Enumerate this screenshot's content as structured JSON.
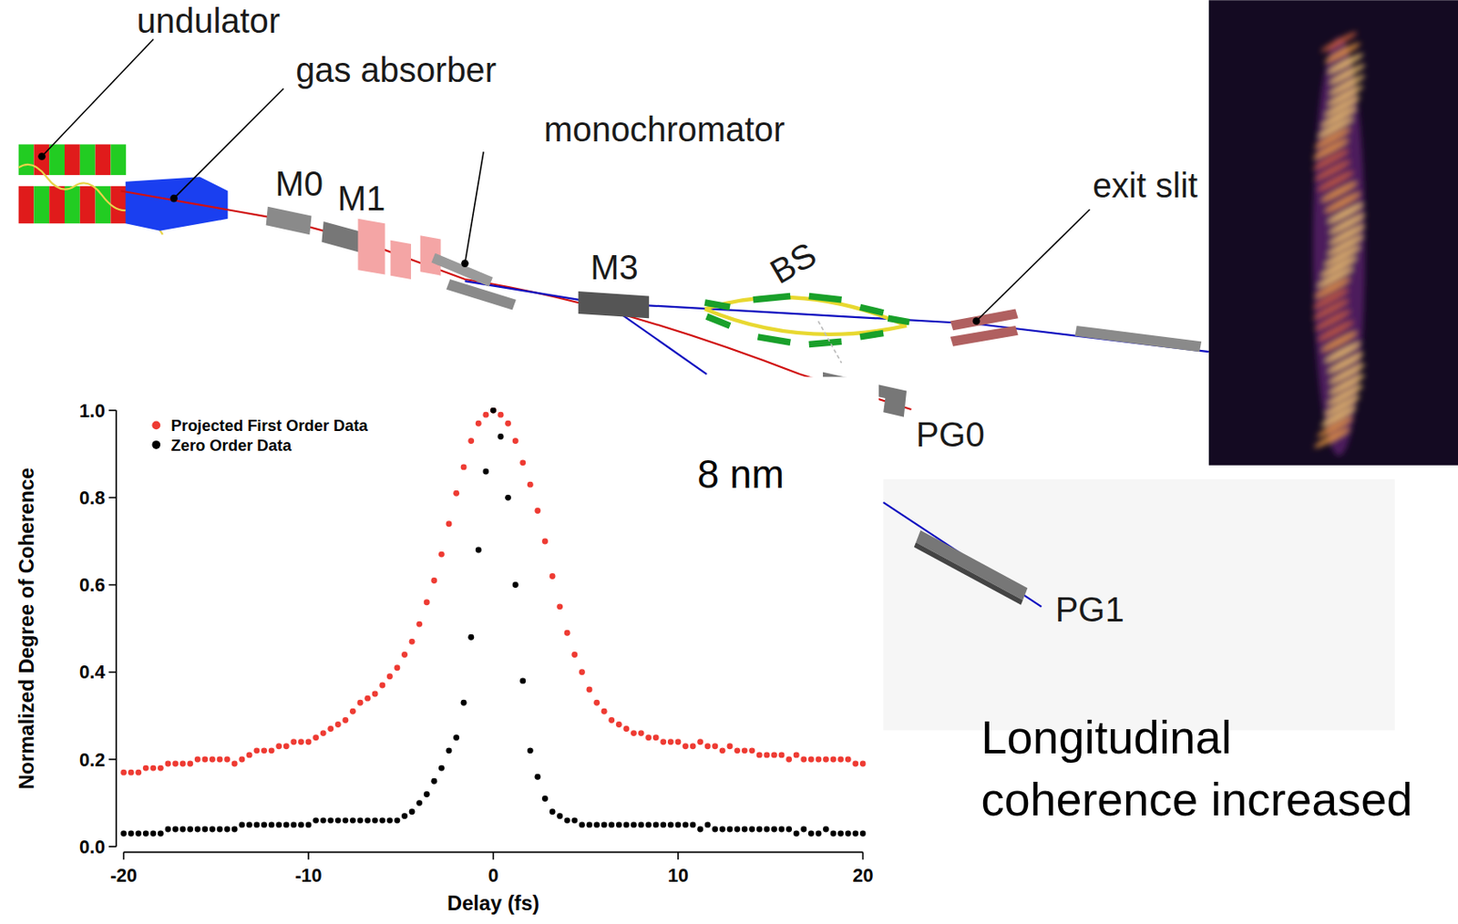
{
  "chart_data": {
    "type": "scatter",
    "x_label": "Delay (fs)",
    "y_label": "Normalized Degree of Coherence",
    "annotation": "8 nm",
    "legend": "top-left",
    "grid": false,
    "marker": "circle",
    "xlim": [
      -20,
      20
    ],
    "ylim": [
      0,
      1
    ],
    "xticks": [
      -20,
      -10,
      0,
      10,
      20
    ],
    "yticks": [
      {
        "value": 0,
        "label": "0.0"
      },
      0.2,
      0.4,
      0.6,
      0.8,
      {
        "value": 1,
        "label": "1.0"
      }
    ],
    "x": [
      -20,
      -19.6,
      -19.2,
      -18.8,
      -18.4,
      -18,
      -17.6,
      -17.2,
      -16.8,
      -16.4,
      -16,
      -15.6,
      -15.2,
      -14.8,
      -14.4,
      -14,
      -13.6,
      -13.2,
      -12.8,
      -12.4,
      -12,
      -11.6,
      -11.2,
      -10.8,
      -10.4,
      -10,
      -9.6,
      -9.2,
      -8.8,
      -8.4,
      -8,
      -7.6,
      -7.2,
      -6.8,
      -6.4,
      -6,
      -5.6,
      -5.2,
      -4.8,
      -4.4,
      -4,
      -3.6,
      -3.2,
      -2.8,
      -2.4,
      -2,
      -1.6,
      -1.2,
      -0.8,
      -0.4,
      0,
      0.4,
      0.8,
      1.2,
      1.6,
      2,
      2.4,
      2.8,
      3.2,
      3.6,
      4,
      4.4,
      4.8,
      5.2,
      5.6,
      6,
      6.4,
      6.8,
      7.2,
      7.6,
      8,
      8.4,
      8.8,
      9.2,
      9.6,
      10,
      10.4,
      10.8,
      11.2,
      11.6,
      12,
      12.4,
      12.8,
      13.2,
      13.6,
      14,
      14.4,
      14.8,
      15.2,
      15.6,
      16,
      16.4,
      16.8,
      17.2,
      17.6,
      18,
      18.4,
      18.8,
      19.2,
      19.6,
      20
    ],
    "series": [
      {
        "name": "Projected First Order Data",
        "color": "#ee3b33",
        "marker": "circle",
        "values": [
          0.17,
          0.17,
          0.17,
          0.18,
          0.18,
          0.18,
          0.19,
          0.19,
          0.19,
          0.19,
          0.2,
          0.2,
          0.2,
          0.2,
          0.2,
          0.19,
          0.2,
          0.21,
          0.22,
          0.22,
          0.22,
          0.23,
          0.23,
          0.24,
          0.24,
          0.24,
          0.25,
          0.26,
          0.27,
          0.28,
          0.29,
          0.31,
          0.33,
          0.34,
          0.35,
          0.37,
          0.39,
          0.41,
          0.44,
          0.47,
          0.51,
          0.56,
          0.61,
          0.67,
          0.74,
          0.81,
          0.87,
          0.93,
          0.97,
          0.99,
          1.0,
          0.99,
          0.97,
          0.93,
          0.88,
          0.83,
          0.77,
          0.7,
          0.62,
          0.55,
          0.49,
          0.44,
          0.4,
          0.36,
          0.33,
          0.31,
          0.29,
          0.28,
          0.27,
          0.26,
          0.26,
          0.25,
          0.25,
          0.24,
          0.24,
          0.24,
          0.23,
          0.23,
          0.24,
          0.23,
          0.23,
          0.22,
          0.23,
          0.22,
          0.22,
          0.22,
          0.21,
          0.21,
          0.21,
          0.21,
          0.2,
          0.21,
          0.2,
          0.2,
          0.2,
          0.2,
          0.2,
          0.2,
          0.2,
          0.19,
          0.19
        ]
      },
      {
        "name": "Zero Order Data",
        "color": "#000000",
        "marker": "circle",
        "values": [
          0.03,
          0.03,
          0.03,
          0.03,
          0.03,
          0.03,
          0.04,
          0.04,
          0.04,
          0.04,
          0.04,
          0.04,
          0.04,
          0.04,
          0.04,
          0.04,
          0.05,
          0.05,
          0.05,
          0.05,
          0.05,
          0.05,
          0.05,
          0.05,
          0.05,
          0.05,
          0.06,
          0.06,
          0.06,
          0.06,
          0.06,
          0.06,
          0.06,
          0.06,
          0.06,
          0.06,
          0.06,
          0.06,
          0.07,
          0.08,
          0.1,
          0.12,
          0.15,
          0.18,
          0.22,
          0.25,
          0.33,
          0.48,
          0.68,
          0.86,
          1.0,
          0.94,
          0.8,
          0.6,
          0.38,
          0.22,
          0.16,
          0.11,
          0.08,
          0.07,
          0.06,
          0.06,
          0.05,
          0.05,
          0.05,
          0.05,
          0.05,
          0.05,
          0.05,
          0.05,
          0.05,
          0.05,
          0.05,
          0.05,
          0.05,
          0.05,
          0.05,
          0.05,
          0.04,
          0.05,
          0.04,
          0.04,
          0.04,
          0.04,
          0.04,
          0.04,
          0.04,
          0.04,
          0.04,
          0.04,
          0.04,
          0.03,
          0.04,
          0.03,
          0.03,
          0.04,
          0.03,
          0.03,
          0.03,
          0.03,
          0.03
        ]
      }
    ]
  },
  "diagram": {
    "labels": [
      "undulator",
      "gas absorber",
      "M0",
      "M1",
      "monochromator",
      "M3",
      "BS",
      "exit slit",
      "PG0",
      "PG1"
    ],
    "caption": "Longitudinal coherence increased"
  }
}
